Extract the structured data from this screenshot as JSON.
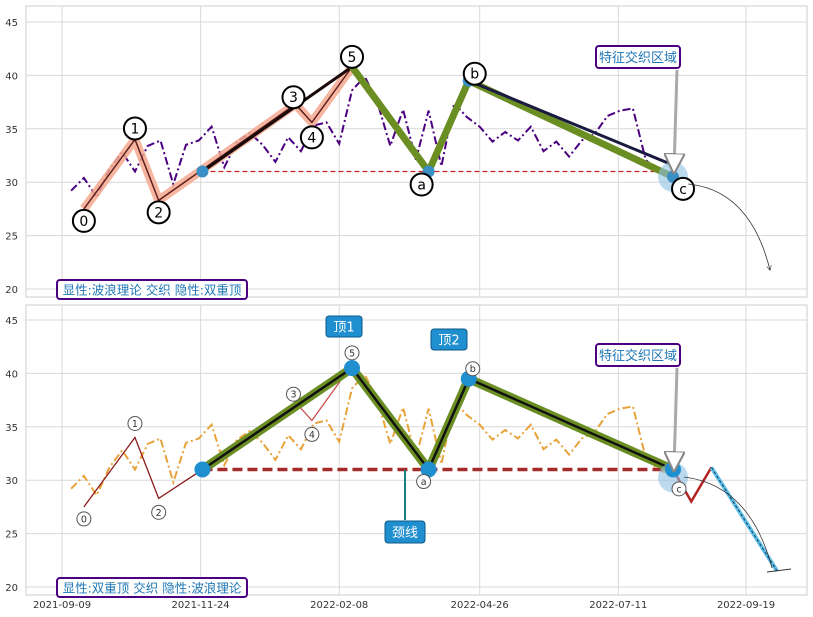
{
  "chart_data": [
    {
      "type": "line",
      "panel": "top",
      "ylim": [
        19.5,
        46.5
      ],
      "yticks": [
        20,
        25,
        30,
        35,
        40,
        45
      ],
      "grid": true,
      "x": [
        "2021-09-14",
        "2021-09-21",
        "2021-09-28",
        "2021-10-05",
        "2021-10-12",
        "2021-10-19",
        "2021-10-26",
        "2021-11-02",
        "2021-11-09",
        "2021-11-16",
        "2021-11-23",
        "2021-11-30",
        "2021-12-07",
        "2021-12-14",
        "2021-12-21",
        "2021-12-28",
        "2022-01-04",
        "2022-01-11",
        "2022-01-18",
        "2022-01-25",
        "2022-02-01",
        "2022-02-08",
        "2022-02-15",
        "2022-02-22",
        "2022-03-01",
        "2022-03-08",
        "2022-03-15",
        "2022-03-22",
        "2022-03-29",
        "2022-04-05",
        "2022-04-12",
        "2022-04-19",
        "2022-04-26",
        "2022-05-03",
        "2022-05-10",
        "2022-05-17",
        "2022-05-24",
        "2022-05-31",
        "2022-06-07",
        "2022-06-14",
        "2022-06-21",
        "2022-06-28",
        "2022-07-05",
        "2022-07-12",
        "2022-07-19",
        "2022-07-26",
        "2022-08-02",
        "2022-08-09"
      ],
      "series": [
        {
          "values": [
            29.2,
            30.4,
            28.6,
            31.2,
            32.8,
            31.0,
            33.4,
            33.9,
            29.8,
            33.5,
            33.9,
            35.2,
            31.4,
            33.8,
            34.6,
            33.5,
            31.9,
            34.2,
            32.9,
            35.3,
            35.6,
            33.6,
            38.6,
            39.9,
            37.4,
            33.4,
            36.8,
            32.1,
            36.7,
            31.5,
            37.4,
            36.1,
            35.2,
            33.8,
            34.7,
            33.9,
            35.2,
            32.9,
            33.8,
            32.4,
            33.9,
            34.5,
            36.2,
            36.7,
            36.9,
            32.1,
            31.0,
            30.5
          ],
          "color": "#4b0082",
          "style": "dashdot"
        }
      ],
      "wave_points": [
        {
          "label": "0",
          "x": "2021-09-21",
          "y": 27.5
        },
        {
          "label": "1",
          "x": "2021-10-19",
          "y": 34.0
        },
        {
          "label": "2",
          "x": "2021-11-01",
          "y": 28.3
        },
        {
          "label": "3",
          "x": "2022-01-15",
          "y": 37.3
        },
        {
          "label": "4",
          "x": "2022-01-24",
          "y": 35.6
        },
        {
          "label": "5",
          "x": "2022-02-15",
          "y": 40.8
        },
        {
          "label": "a",
          "x": "2022-03-29",
          "y": 31.0
        },
        {
          "label": "b",
          "x": "2022-04-20",
          "y": 39.5
        },
        {
          "label": "c",
          "x": "2022-08-10",
          "y": 30.5
        }
      ],
      "neckline": 31.0,
      "annotation": "特征交织区域",
      "legend_text": "显性:波浪理论 交织 隐性:双重顶"
    },
    {
      "type": "line",
      "panel": "bottom",
      "ylim": [
        19.5,
        46.5
      ],
      "yticks": [
        20,
        25,
        30,
        35,
        40,
        45
      ],
      "grid": true,
      "xticks": [
        "2021-09-09",
        "2021-11-24",
        "2022-02-08",
        "2022-04-26",
        "2022-07-11",
        "2022-09-19"
      ],
      "series": [
        {
          "color": "#e8a33a",
          "style": "dashdot"
        }
      ],
      "double_top": [
        {
          "x": "2021-11-25",
          "y": 31.0
        },
        {
          "x": "2022-02-15",
          "y": 40.5
        },
        {
          "x": "2022-03-29",
          "y": 31.0
        },
        {
          "x": "2022-04-20",
          "y": 39.5
        },
        {
          "x": "2022-08-10",
          "y": 31.0
        }
      ],
      "projection": [
        {
          "x": "2022-08-10",
          "y": 31.0
        },
        {
          "x": "2022-08-20",
          "y": 28.0
        },
        {
          "x": "2022-08-31",
          "y": 31.2
        },
        {
          "x": "2022-10-06",
          "y": 21.5
        }
      ],
      "top1_label": "顶1",
      "top2_label": "顶2",
      "neckline_label": "颈线",
      "annotation": "特征交织区域",
      "legend_text": "显性:双重顶 交织 隐性:波浪理论"
    }
  ]
}
